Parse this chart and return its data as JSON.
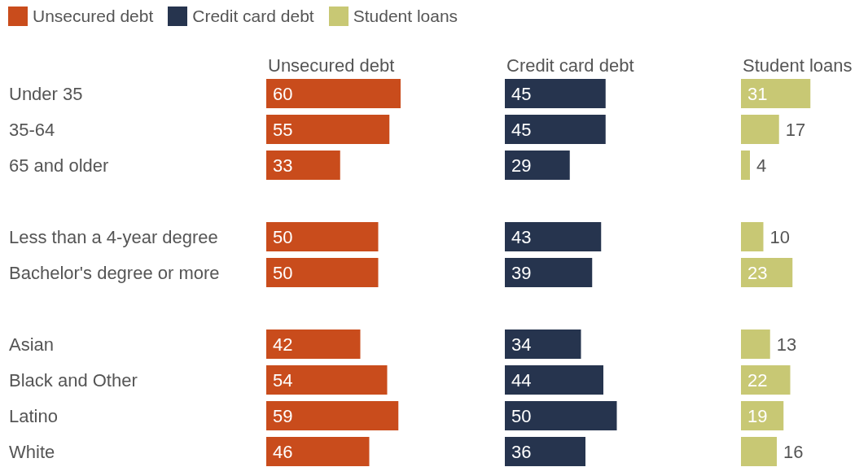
{
  "chart_data": [
    {
      "type": "bar",
      "orientation": "horizontal",
      "title": "Unsecured debt",
      "legend": "top left",
      "data_labels": true,
      "tick_labels": "y",
      "categories": [
        "Under 35",
        "35-64",
        "65 and older",
        null,
        "Less than a 4-year degree",
        "Bachelor's degree or more",
        null,
        "Asian",
        "Black and Other",
        "Latino",
        "White"
      ],
      "series": [
        {
          "name": "Unsecured debt",
          "color": "#c94c1c",
          "values": [
            60,
            55,
            33,
            null,
            50,
            50,
            null,
            42,
            54,
            59,
            46
          ]
        }
      ]
    },
    {
      "type": "bar",
      "orientation": "horizontal",
      "title": "Credit card debt",
      "legend": "top left",
      "data_labels": true,
      "tick_labels": false,
      "categories": [
        null,
        null,
        null,
        null,
        null,
        null,
        null,
        null,
        null,
        null,
        null
      ],
      "series": [
        {
          "name": "Credit card debt",
          "color": "#26344e",
          "values": [
            45,
            45,
            29,
            null,
            43,
            39,
            null,
            34,
            44,
            50,
            36
          ]
        }
      ]
    },
    {
      "type": "bar",
      "orientation": "horizontal",
      "title": "Student loans",
      "legend": "top left",
      "data_labels": true,
      "tick_labels": false,
      "categories": [
        null,
        null,
        null,
        null,
        null,
        null,
        null,
        null,
        null,
        null,
        null
      ],
      "series": [
        {
          "name": "Student loans",
          "color": "#c8c874",
          "values": [
            31,
            17,
            4,
            null,
            10,
            23,
            null,
            13,
            22,
            19,
            16
          ]
        }
      ]
    }
  ]
}
